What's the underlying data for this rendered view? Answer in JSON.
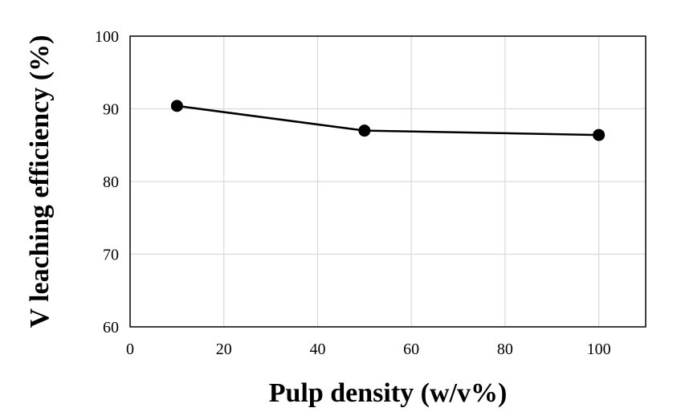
{
  "chart_data": {
    "type": "line",
    "title": "",
    "xlabel": "Pulp density (w/v%)",
    "ylabel": "V leaching efficiency (%)",
    "xlim": [
      0,
      110
    ],
    "ylim": [
      60,
      100
    ],
    "xticks": [
      0,
      20,
      40,
      60,
      80,
      100
    ],
    "yticks": [
      60,
      70,
      80,
      90,
      100
    ],
    "grid": true,
    "legend": "none",
    "series": [
      {
        "x": [
          10,
          50,
          100
        ],
        "y": [
          90.4,
          87.0,
          86.4
        ],
        "color": "#000000",
        "marker": "circle"
      }
    ]
  }
}
